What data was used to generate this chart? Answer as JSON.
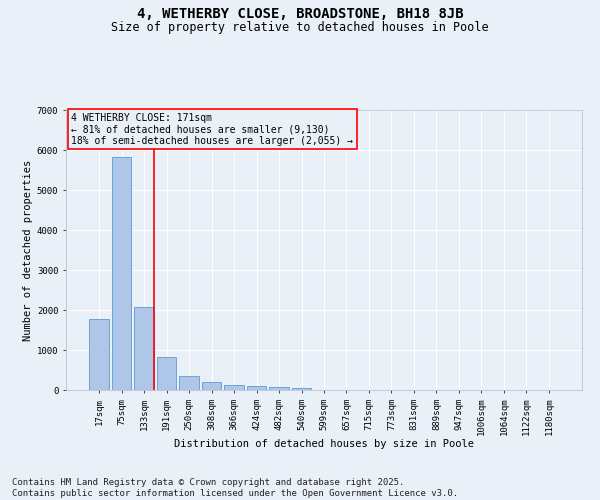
{
  "title": "4, WETHERBY CLOSE, BROADSTONE, BH18 8JB",
  "subtitle": "Size of property relative to detached houses in Poole",
  "xlabel": "Distribution of detached houses by size in Poole",
  "ylabel": "Number of detached properties",
  "categories": [
    "17sqm",
    "75sqm",
    "133sqm",
    "191sqm",
    "250sqm",
    "308sqm",
    "366sqm",
    "424sqm",
    "482sqm",
    "540sqm",
    "599sqm",
    "657sqm",
    "715sqm",
    "773sqm",
    "831sqm",
    "889sqm",
    "947sqm",
    "1006sqm",
    "1064sqm",
    "1122sqm",
    "1180sqm"
  ],
  "values": [
    1780,
    5820,
    2080,
    820,
    340,
    190,
    120,
    110,
    80,
    60,
    0,
    0,
    0,
    0,
    0,
    0,
    0,
    0,
    0,
    0,
    0
  ],
  "bar_color": "#aec6e8",
  "bar_edge_color": "#5b9bd5",
  "vline_color": "red",
  "vline_position": 2.425,
  "annotation_title": "4 WETHERBY CLOSE: 171sqm",
  "annotation_line1": "← 81% of detached houses are smaller (9,130)",
  "annotation_line2": "18% of semi-detached houses are larger (2,055) →",
  "annotation_box_color": "red",
  "ylim": [
    0,
    7000
  ],
  "yticks": [
    0,
    1000,
    2000,
    3000,
    4000,
    5000,
    6000,
    7000
  ],
  "bg_color": "#eaf0f8",
  "grid_color": "#ffffff",
  "footer_line1": "Contains HM Land Registry data © Crown copyright and database right 2025.",
  "footer_line2": "Contains public sector information licensed under the Open Government Licence v3.0.",
  "title_fontsize": 10,
  "subtitle_fontsize": 8.5,
  "axis_label_fontsize": 7.5,
  "tick_fontsize": 6.5,
  "annotation_fontsize": 7,
  "footer_fontsize": 6.5
}
